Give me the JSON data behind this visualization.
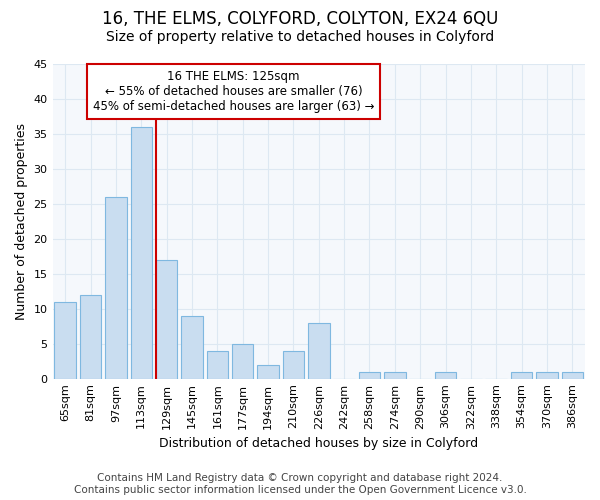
{
  "title": "16, THE ELMS, COLYFORD, COLYTON, EX24 6QU",
  "subtitle": "Size of property relative to detached houses in Colyford",
  "xlabel": "Distribution of detached houses by size in Colyford",
  "ylabel": "Number of detached properties",
  "categories": [
    "65sqm",
    "81sqm",
    "97sqm",
    "113sqm",
    "129sqm",
    "145sqm",
    "161sqm",
    "177sqm",
    "194sqm",
    "210sqm",
    "226sqm",
    "242sqm",
    "258sqm",
    "274sqm",
    "290sqm",
    "306sqm",
    "322sqm",
    "338sqm",
    "354sqm",
    "370sqm",
    "386sqm"
  ],
  "values": [
    11,
    12,
    26,
    36,
    17,
    9,
    4,
    5,
    2,
    4,
    8,
    0,
    1,
    1,
    0,
    1,
    0,
    0,
    1,
    1,
    1
  ],
  "bar_color": "#c9ddf0",
  "bar_edge_color": "#7fb8e0",
  "property_line_color": "#cc0000",
  "property_line_index": 4,
  "annotation_line1": "16 THE ELMS: 125sqm",
  "annotation_line2": "← 55% of detached houses are smaller (76)",
  "annotation_line3": "45% of semi-detached houses are larger (63) →",
  "annotation_box_facecolor": "#ffffff",
  "annotation_box_edgecolor": "#cc0000",
  "footer_line1": "Contains HM Land Registry data © Crown copyright and database right 2024.",
  "footer_line2": "Contains public sector information licensed under the Open Government Licence v3.0.",
  "ylim": [
    0,
    45
  ],
  "background_color": "#ffffff",
  "plot_bg_color": "#f5f8fc",
  "grid_color": "#dde8f2",
  "title_fontsize": 12,
  "subtitle_fontsize": 10,
  "axis_label_fontsize": 9,
  "tick_fontsize": 8,
  "annotation_fontsize": 8.5,
  "footer_fontsize": 7.5
}
